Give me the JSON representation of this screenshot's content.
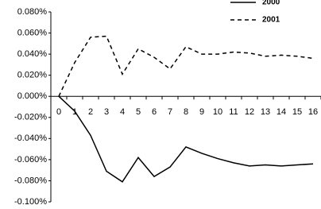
{
  "chart_data": {
    "type": "line",
    "categories": [
      "0",
      "1",
      "2",
      "3",
      "4",
      "5",
      "6",
      "7",
      "8",
      "9",
      "10",
      "11",
      "12",
      "13",
      "14",
      "15",
      "16"
    ],
    "series": [
      {
        "name": "2000",
        "color": "#000000",
        "style": "solid",
        "values": [
          0,
          -0.014,
          -0.037,
          -0.071,
          -0.081,
          -0.058,
          -0.076,
          -0.067,
          -0.048,
          -0.054,
          -0.059,
          -0.063,
          -0.066,
          -0.065,
          -0.066,
          -0.065,
          -0.064
        ]
      },
      {
        "name": "2001",
        "color": "#000000",
        "style": "dashed",
        "values": [
          0,
          0.032,
          0.056,
          0.057,
          0.021,
          0.045,
          0.037,
          0.026,
          0.047,
          0.04,
          0.04,
          0.042,
          0.041,
          0.038,
          0.039,
          0.038,
          0.036
        ]
      }
    ],
    "ylim": [
      -0.1,
      0.08
    ],
    "yticks": [
      {
        "value": 0.08,
        "label": "0.080%"
      },
      {
        "value": 0.06,
        "label": "0.060%"
      },
      {
        "value": 0.04,
        "label": "0.040%"
      },
      {
        "value": 0.02,
        "label": "0.020%"
      },
      {
        "value": 0,
        "label": "0.000%"
      },
      {
        "value": -0.02,
        "label": "-0.020%"
      },
      {
        "value": -0.04,
        "label": "-0.040%"
      },
      {
        "value": -0.06,
        "label": "-0.060%"
      },
      {
        "value": -0.08,
        "label": "-0.080%"
      },
      {
        "value": -0.1,
        "label": "-0.100%"
      }
    ],
    "grid": false,
    "legend": "top-right"
  }
}
